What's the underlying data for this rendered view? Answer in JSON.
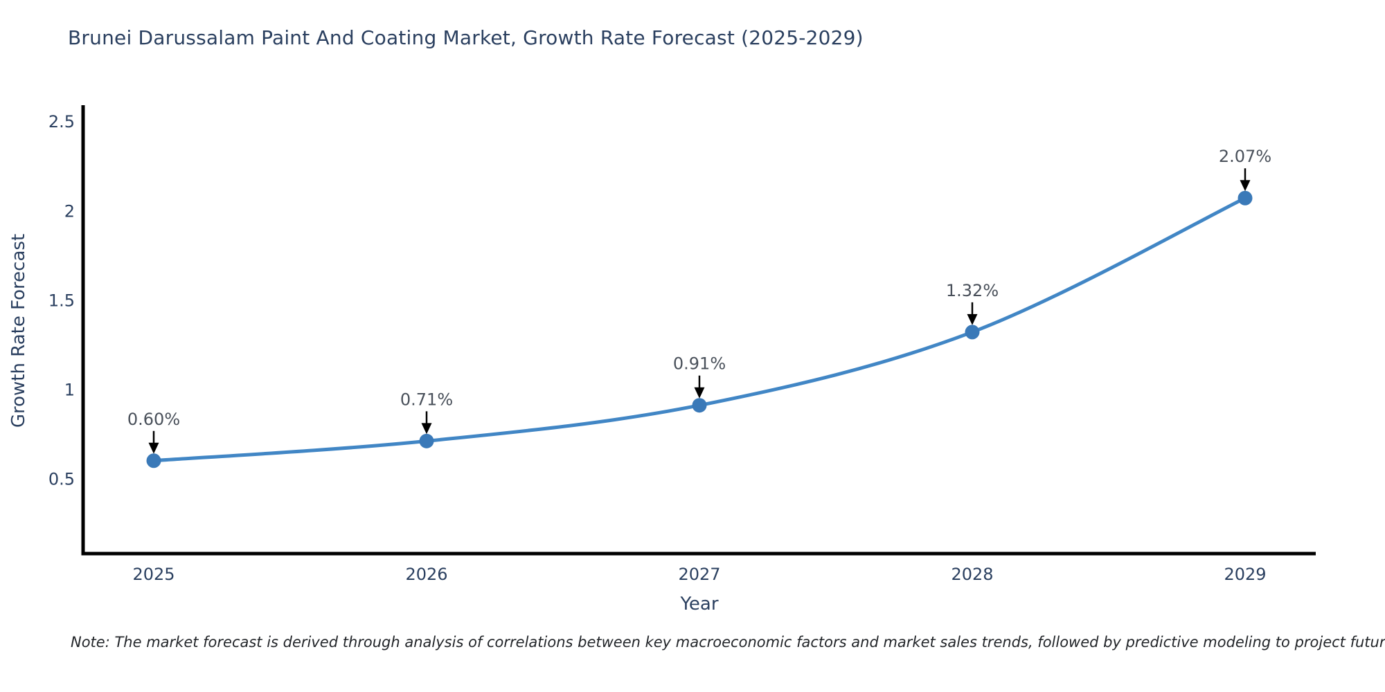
{
  "title": "Brunei Darussalam Paint And Coating Market, Growth Rate Forecast (2025-2029)",
  "note": "Note: The market forecast is derived through analysis of correlations between key macroeconomic factors and market sales trends, followed by predictive modeling to project future sales",
  "chart_data": {
    "type": "line",
    "title": "Brunei Darussalam Paint And Coating Market, Growth Rate Forecast (2025-2029)",
    "xlabel": "Year",
    "ylabel": "Growth Rate Forecast",
    "categories": [
      "2025",
      "2026",
      "2027",
      "2028",
      "2029"
    ],
    "values": [
      0.6,
      0.71,
      0.91,
      1.32,
      2.07
    ],
    "point_labels": [
      "0.60%",
      "0.71%",
      "0.91%",
      "1.32%",
      "2.07%"
    ],
    "yticks": [
      0.5,
      1,
      1.5,
      2,
      2.5
    ],
    "ytick_labels": [
      "0.5",
      "1",
      "1.5",
      "2",
      "2.5"
    ],
    "ylim": [
      0.08,
      2.59
    ],
    "grid": false,
    "legend_position": "none",
    "line_shape": "spline",
    "annotations_have_arrows": true,
    "colors": {
      "line": "#4186c5",
      "marker": "#3a79b8",
      "axis_line": "#000000",
      "axis_text": "#2a3f5f",
      "annotation_text": "#49505a",
      "arrow": "#000000",
      "background": "#ffffff"
    }
  }
}
